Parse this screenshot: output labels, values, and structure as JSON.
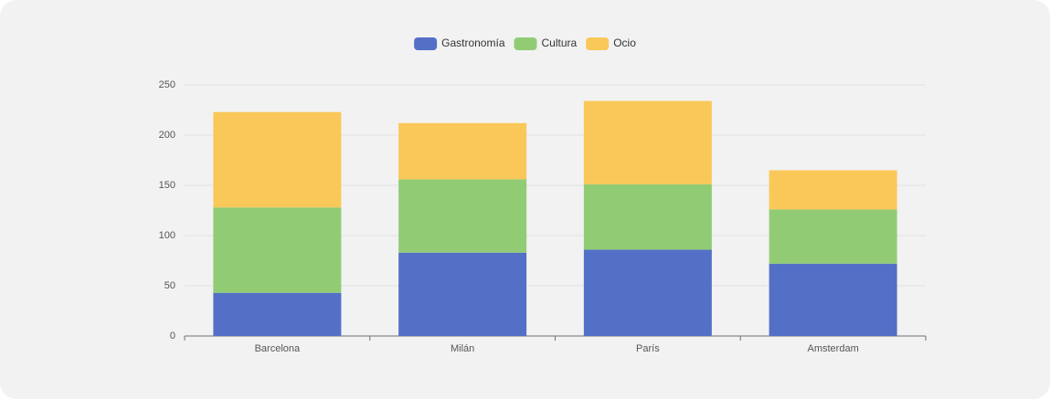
{
  "chart_data": {
    "type": "stacked_bar",
    "categories": [
      "Barcelona",
      "Milán",
      "París",
      "Amsterdam"
    ],
    "series": [
      {
        "name": "Gastronomía",
        "color": "#5470c6",
        "values": [
          43,
          83,
          86,
          72
        ]
      },
      {
        "name": "Cultura",
        "color": "#91cc75",
        "values": [
          85,
          73,
          65,
          54
        ]
      },
      {
        "name": "Ocio",
        "color": "#fac858",
        "values": [
          95,
          56,
          83,
          39
        ]
      }
    ],
    "ylim": [
      0,
      250
    ],
    "yticks": [
      0,
      50,
      100,
      150,
      200,
      250
    ],
    "grid": true,
    "legend": "top"
  }
}
